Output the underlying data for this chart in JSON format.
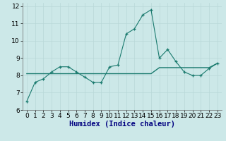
{
  "xlabel": "Humidex (Indice chaleur)",
  "ylabel": "",
  "xlim": [
    -0.5,
    23.5
  ],
  "ylim": [
    6,
    12.2
  ],
  "yticks": [
    6,
    7,
    8,
    9,
    10,
    11,
    12
  ],
  "xticks": [
    0,
    1,
    2,
    3,
    4,
    5,
    6,
    7,
    8,
    9,
    10,
    11,
    12,
    13,
    14,
    15,
    16,
    17,
    18,
    19,
    20,
    21,
    22,
    23
  ],
  "bg_color": "#cce8e8",
  "line1_x": [
    0,
    1,
    2,
    3,
    4,
    5,
    6,
    7,
    8,
    9,
    10,
    11,
    12,
    13,
    14,
    15,
    16,
    17,
    18,
    19,
    20,
    21,
    22,
    23
  ],
  "line1_y": [
    6.5,
    7.6,
    7.8,
    8.2,
    8.5,
    8.5,
    8.2,
    7.9,
    7.6,
    7.6,
    8.5,
    8.6,
    10.4,
    10.7,
    11.5,
    11.8,
    9.0,
    9.5,
    8.8,
    8.2,
    8.0,
    8.0,
    8.4,
    8.7
  ],
  "line2_x": [
    0,
    1,
    2,
    3,
    4,
    5,
    6,
    7,
    8,
    9,
    10,
    11,
    12,
    13,
    14,
    15,
    16,
    17,
    18,
    19,
    20,
    21,
    22,
    23
  ],
  "line2_y": [
    8.1,
    8.1,
    8.1,
    8.1,
    8.1,
    8.1,
    8.1,
    8.1,
    8.1,
    8.1,
    8.1,
    8.1,
    8.1,
    8.1,
    8.1,
    8.1,
    8.45,
    8.45,
    8.45,
    8.45,
    8.45,
    8.45,
    8.45,
    8.7
  ],
  "line_color": "#1a7a6e",
  "grid_color": "#b8d8d8",
  "tick_fontsize": 6.5,
  "xlabel_fontsize": 7.5,
  "xlabel_color": "#000080"
}
